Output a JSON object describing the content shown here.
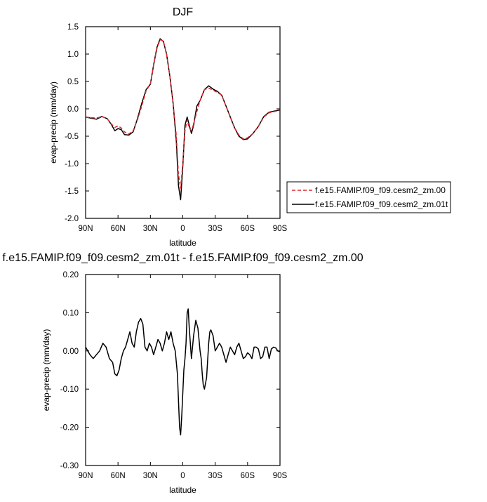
{
  "figure": {
    "legend": {
      "entries": [
        {
          "label": "f.e15.FAMIP.f09_f09.cesm2_zm.00",
          "color": "#e3262b",
          "dash": "dashed"
        },
        {
          "label": "f.e15.FAMIP.f09_f09.cesm2_zm.01t",
          "color": "#000000",
          "dash": "solid"
        }
      ]
    }
  },
  "chart_data": [
    {
      "type": "line",
      "title": "DJF",
      "xlabel": "latitude",
      "ylabel": "evap-precip (mm/day)",
      "xlim": [
        90,
        -90
      ],
      "ylim": [
        -2.0,
        1.5
      ],
      "xticks": [
        {
          "value": 90,
          "label": "90N"
        },
        {
          "value": 60,
          "label": "60N"
        },
        {
          "value": 30,
          "label": "30N"
        },
        {
          "value": 0,
          "label": "0"
        },
        {
          "value": -30,
          "label": "30S"
        },
        {
          "value": -60,
          "label": "60S"
        },
        {
          "value": -90,
          "label": "90S"
        }
      ],
      "yticks": [
        {
          "value": 1.5,
          "label": "1.5"
        },
        {
          "value": 1.0,
          "label": "1.0"
        },
        {
          "value": 0.5,
          "label": "0.5"
        },
        {
          "value": 0.0,
          "label": "0.0"
        },
        {
          "value": -0.5,
          "label": "-0.5"
        },
        {
          "value": -1.0,
          "label": "-1.0"
        },
        {
          "value": -1.5,
          "label": "-1.5"
        },
        {
          "value": -2.0,
          "label": "-2.0"
        }
      ],
      "x": [
        90,
        85,
        80,
        75,
        70,
        66,
        63,
        60,
        57,
        54,
        50,
        46,
        42,
        38,
        34,
        30,
        27,
        24,
        21,
        18,
        15,
        12,
        9,
        6,
        4,
        2,
        0,
        -2,
        -4,
        -6,
        -8,
        -10,
        -13,
        -16,
        -20,
        -24,
        -28,
        -32,
        -36,
        -40,
        -44,
        -48,
        -52,
        -56,
        -60,
        -65,
        -70,
        -75,
        -80,
        -85,
        -90
      ],
      "series": [
        {
          "name": "f.e15.FAMIP.f09_f09.cesm2_zm.00",
          "color": "#e3262b",
          "dash": "dashed",
          "values": [
            -0.15,
            -0.16,
            -0.17,
            -0.14,
            -0.18,
            -0.28,
            -0.34,
            -0.31,
            -0.35,
            -0.42,
            -0.46,
            -0.4,
            -0.2,
            0.05,
            0.33,
            0.45,
            0.8,
            1.1,
            1.26,
            1.24,
            1.0,
            0.6,
            0.1,
            -0.5,
            -1.2,
            -1.45,
            -1.0,
            -0.4,
            -0.2,
            -0.35,
            -0.4,
            -0.28,
            -0.05,
            0.15,
            0.35,
            0.38,
            0.34,
            0.3,
            0.25,
            0.05,
            -0.15,
            -0.35,
            -0.48,
            -0.55,
            -0.53,
            -0.45,
            -0.32,
            -0.15,
            -0.07,
            -0.05,
            -0.02
          ]
        },
        {
          "name": "f.e15.FAMIP.f09_f09.cesm2_zm.01t",
          "color": "#000000",
          "dash": "solid",
          "values": [
            -0.15,
            -0.17,
            -0.19,
            -0.14,
            -0.18,
            -0.29,
            -0.4,
            -0.36,
            -0.38,
            -0.47,
            -0.48,
            -0.42,
            -0.18,
            0.1,
            0.35,
            0.45,
            0.8,
            1.12,
            1.28,
            1.23,
            1.0,
            0.6,
            0.1,
            -0.6,
            -1.4,
            -1.66,
            -1.05,
            -0.3,
            -0.15,
            -0.3,
            -0.45,
            -0.3,
            0.05,
            0.15,
            0.35,
            0.42,
            0.36,
            0.32,
            0.25,
            0.05,
            -0.15,
            -0.35,
            -0.5,
            -0.56,
            -0.55,
            -0.45,
            -0.32,
            -0.14,
            -0.06,
            -0.04,
            -0.02
          ]
        }
      ]
    },
    {
      "type": "line",
      "title": "f.e15.FAMIP.f09_f09.cesm2_zm.01t - f.e15.FAMIP.f09_f09.cesm2_zm.00",
      "xlabel": "latitude",
      "ylabel": "evap-precip (mm/day)",
      "xlim": [
        90,
        -90
      ],
      "ylim": [
        -0.3,
        0.2
      ],
      "xticks": [
        {
          "value": 90,
          "label": "90N"
        },
        {
          "value": 60,
          "label": "60N"
        },
        {
          "value": 30,
          "label": "30N"
        },
        {
          "value": 0,
          "label": "0"
        },
        {
          "value": -30,
          "label": "30S"
        },
        {
          "value": -60,
          "label": "60S"
        },
        {
          "value": -90,
          "label": "90S"
        }
      ],
      "yticks": [
        {
          "value": 0.2,
          "label": "0.20"
        },
        {
          "value": 0.1,
          "label": "0.10"
        },
        {
          "value": 0.0,
          "label": "0.00"
        },
        {
          "value": -0.1,
          "label": "-0.10"
        },
        {
          "value": -0.2,
          "label": "-0.20"
        },
        {
          "value": -0.3,
          "label": "-0.30"
        }
      ],
      "x": [
        90,
        86,
        83,
        80,
        77,
        74,
        71,
        68,
        65,
        63,
        61,
        59,
        57,
        55,
        53,
        51,
        49,
        47,
        45,
        43,
        41,
        39,
        37,
        35,
        33,
        31,
        29,
        27,
        25,
        23,
        21,
        19,
        17,
        15,
        13,
        11,
        9,
        7,
        5,
        3,
        2,
        1,
        -1,
        -2,
        -3,
        -4,
        -5,
        -6,
        -8,
        -10,
        -12,
        -14,
        -15,
        -16,
        -17,
        -18,
        -19,
        -20,
        -22,
        -24,
        -25,
        -26,
        -28,
        -30,
        -32,
        -34,
        -36,
        -38,
        -40,
        -42,
        -44,
        -46,
        -48,
        -50,
        -52,
        -54,
        -56,
        -58,
        -60,
        -62,
        -64,
        -66,
        -68,
        -70,
        -72,
        -74,
        -76,
        -78,
        -80,
        -82,
        -84,
        -86,
        -88,
        -90
      ],
      "series": [
        {
          "name": "f.e15.FAMIP.f09_f09.cesm2_zm.01t",
          "color": "#000000",
          "dash": "solid",
          "values": [
            0.01,
            -0.01,
            -0.02,
            -0.01,
            0.0,
            0.02,
            0.01,
            -0.02,
            -0.03,
            -0.06,
            -0.065,
            -0.05,
            -0.02,
            0.0,
            0.01,
            0.03,
            0.05,
            0.02,
            0.01,
            0.05,
            0.075,
            0.085,
            0.07,
            0.01,
            0.0,
            0.02,
            0.01,
            -0.01,
            0.01,
            0.03,
            0.02,
            0.0,
            0.02,
            0.05,
            0.03,
            0.05,
            0.02,
            0.0,
            -0.06,
            -0.2,
            -0.22,
            -0.17,
            -0.05,
            -0.02,
            0.02,
            0.1,
            0.11,
            0.06,
            -0.02,
            0.04,
            0.08,
            0.06,
            0.03,
            0.0,
            -0.02,
            -0.06,
            -0.09,
            -0.1,
            -0.07,
            0.02,
            0.05,
            0.055,
            0.04,
            0.0,
            0.01,
            0.02,
            0.01,
            -0.01,
            -0.03,
            -0.01,
            0.01,
            0.0,
            -0.01,
            0.01,
            0.02,
            0.0,
            -0.02,
            -0.015,
            -0.005,
            -0.01,
            -0.02,
            0.01,
            0.01,
            0.005,
            -0.02,
            -0.015,
            0.01,
            0.01,
            -0.02,
            0.005,
            0.01,
            0.008,
            0.0,
            -0.002
          ]
        }
      ]
    }
  ]
}
